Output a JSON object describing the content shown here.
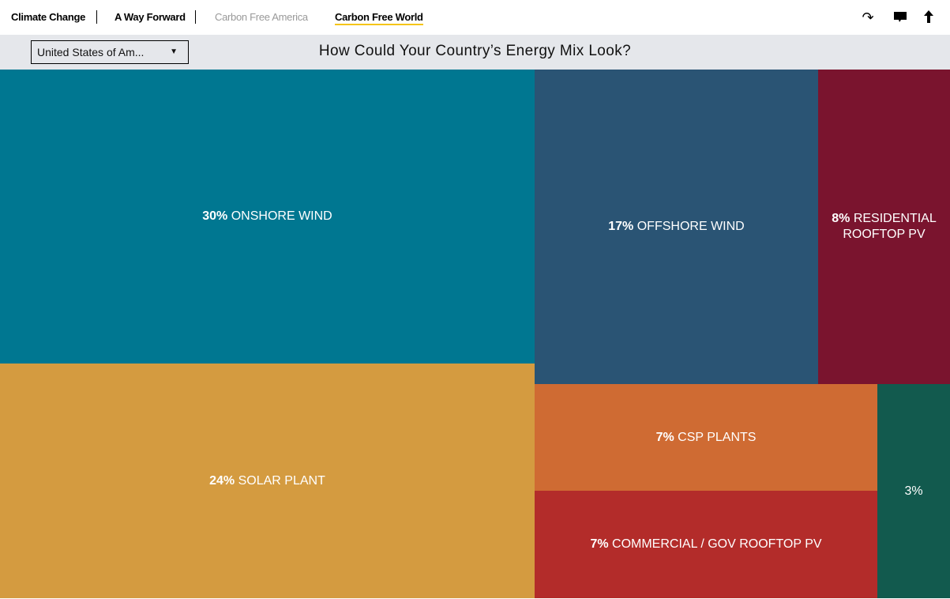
{
  "nav": {
    "items": [
      "Climate Change",
      "A Way Forward",
      "Carbon Free America",
      "Carbon Free World"
    ],
    "active": "Carbon Free World",
    "accent": "#f5c518"
  },
  "icons": [
    "share-icon",
    "comment-icon",
    "scroll-top-icon"
  ],
  "country_select": {
    "value": "United States of Am..."
  },
  "chart_data": {
    "type": "treemap",
    "title": "How Could Your Country’s Energy Mix Look?",
    "items": [
      {
        "pct": "30%",
        "label": "ONSHORE WIND",
        "value": 30,
        "color": "#007791"
      },
      {
        "pct": "24%",
        "label": "SOLAR PLANT",
        "value": 24,
        "color": "#d49b40"
      },
      {
        "pct": "17%",
        "label": "OFFSHORE WIND",
        "value": 17,
        "color": "#2a5474"
      },
      {
        "pct": "8%",
        "label": "RESIDENTIAL ROOFTOP PV",
        "value": 8,
        "color": "#7a142e"
      },
      {
        "pct": "7%",
        "label": "CSP PLANTS",
        "value": 7,
        "color": "#cf6b33"
      },
      {
        "pct": "7%",
        "label": "COMMERCIAL / GOV ROOFTOP PV",
        "value": 7,
        "color": "#b32c2a"
      },
      {
        "pct": "3%",
        "label": "",
        "value": 3,
        "color": "#125a4e"
      }
    ]
  }
}
